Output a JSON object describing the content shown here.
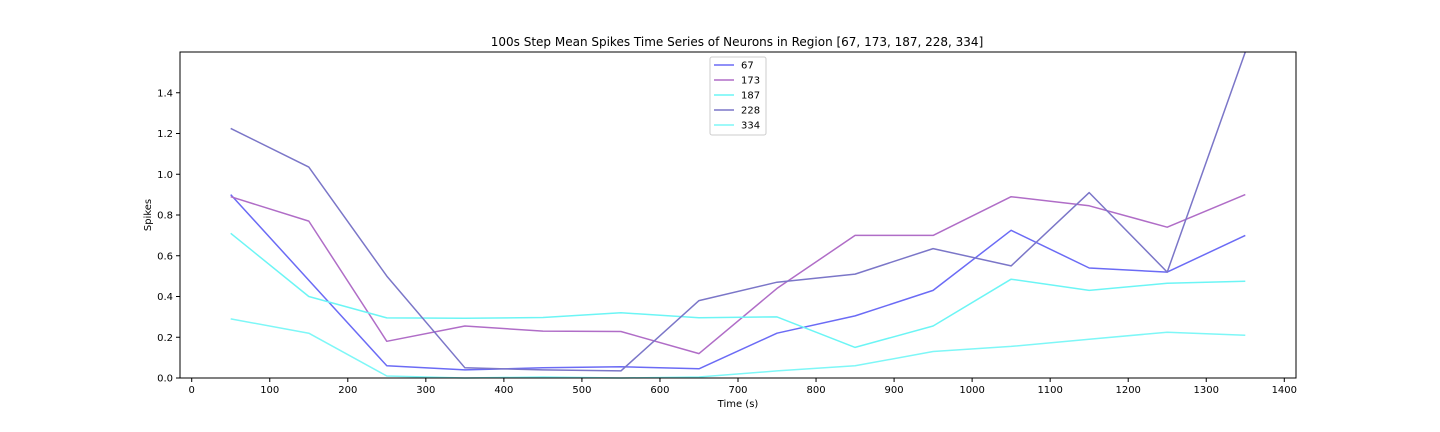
{
  "chart_data": {
    "type": "line",
    "title": "100s Step Mean Spikes Time Series of Neurons in Region [67, 173, 187, 228, 334]",
    "xlabel": "Time (s)",
    "ylabel": "Spikes",
    "xlim": [
      -15,
      1415
    ],
    "ylim": [
      0,
      1.6
    ],
    "xticks": [
      0,
      100,
      200,
      300,
      400,
      500,
      600,
      700,
      800,
      900,
      1000,
      1100,
      1200,
      1300,
      1400
    ],
    "yticks": [
      0.0,
      0.2,
      0.4,
      0.6,
      0.8,
      1.0,
      1.2,
      1.4
    ],
    "ytick_labels": [
      "0.0",
      "0.2",
      "0.4",
      "0.6",
      "0.8",
      "1.0",
      "1.2",
      "1.4"
    ],
    "x": [
      50,
      150,
      250,
      350,
      450,
      550,
      650,
      750,
      850,
      950,
      1050,
      1150,
      1250,
      1350
    ],
    "legend_position": "top-center",
    "grid": false,
    "series": [
      {
        "name": "67",
        "color": "#6b6bf5",
        "values": [
          0.9,
          0.48,
          0.06,
          0.04,
          0.05,
          0.055,
          0.045,
          0.22,
          0.305,
          0.43,
          0.725,
          0.54,
          0.52,
          0.7
        ]
      },
      {
        "name": "173",
        "color": "#b06dc7",
        "values": [
          0.89,
          0.77,
          0.18,
          0.255,
          0.23,
          0.228,
          0.12,
          0.44,
          0.7,
          0.7,
          0.89,
          0.845,
          0.74,
          0.9
        ]
      },
      {
        "name": "187",
        "color": "#6cf5f5",
        "values": [
          0.71,
          0.4,
          0.295,
          0.293,
          0.297,
          0.32,
          0.296,
          0.3,
          0.15,
          0.255,
          0.485,
          0.43,
          0.465,
          0.475
        ]
      },
      {
        "name": "228",
        "color": "#7b76c8",
        "values": [
          1.225,
          1.035,
          0.5,
          0.05,
          0.04,
          0.035,
          0.38,
          0.47,
          0.51,
          0.635,
          0.55,
          0.91,
          0.52,
          1.6
        ]
      },
      {
        "name": "334",
        "color": "#7ef7f7",
        "values": [
          0.29,
          0.22,
          0.01,
          0.0,
          0.005,
          0.0,
          0.005,
          0.035,
          0.06,
          0.13,
          0.155,
          0.19,
          0.225,
          0.21
        ]
      }
    ]
  }
}
